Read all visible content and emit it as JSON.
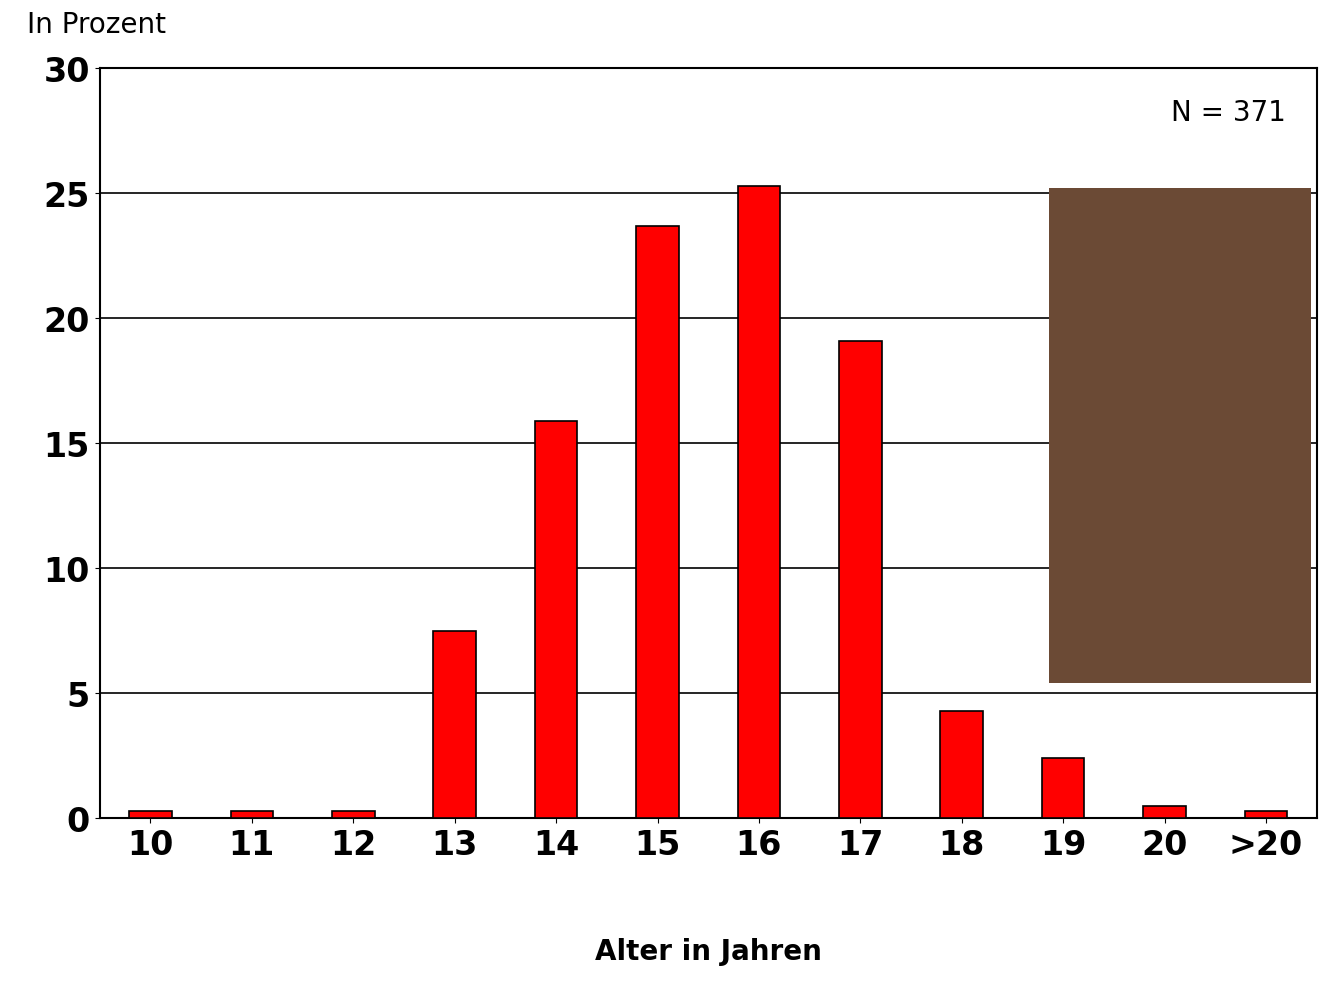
{
  "chart_data": {
    "type": "bar",
    "y_label": "In Prozent",
    "x_label": "Alter in Jahren",
    "annotation": "N = 371",
    "categories": [
      "10",
      "11",
      "12",
      "13",
      "14",
      "15",
      "16",
      "17",
      "18",
      "19",
      "20",
      ">20"
    ],
    "values": [
      0.3,
      0.3,
      0.3,
      7.5,
      15.9,
      23.7,
      25.3,
      19.1,
      4.3,
      2.4,
      0.5,
      0.3
    ],
    "color": "#ff0000",
    "ylim": [
      0,
      30
    ],
    "yticks": [
      0,
      5,
      10,
      15,
      20,
      25,
      30
    ],
    "grid": true
  }
}
